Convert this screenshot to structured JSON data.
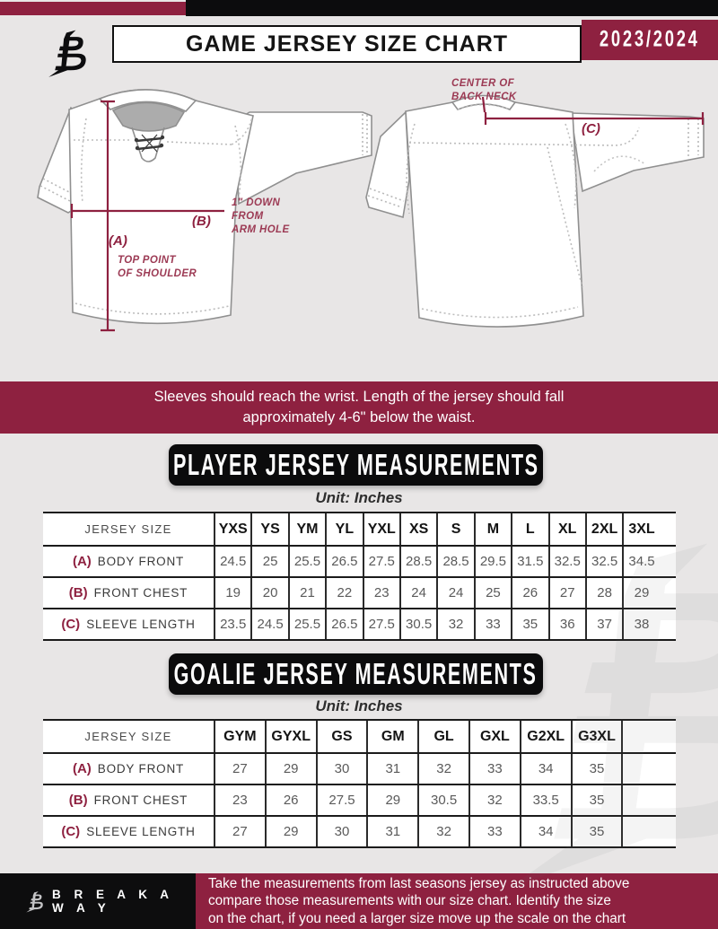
{
  "header": {
    "title": "GAME JERSEY SIZE CHART",
    "season": "2023/2024"
  },
  "diagram": {
    "front": {
      "label_a": "(A)",
      "label_b": "(B)",
      "note_a": [
        "TOP POINT",
        "OF SHOULDER"
      ],
      "note_b": [
        "1\" DOWN",
        "FROM",
        "ARM HOLE"
      ]
    },
    "back": {
      "label_c": "(C)",
      "note_c": [
        "CENTER OF",
        "BACK NECK"
      ]
    }
  },
  "note_banner": [
    "Sleeves should reach the wrist. Length of the jersey should fall",
    "approximately 4-6\" below the waist."
  ],
  "player_table": {
    "title": "PLAYER JERSEY MEASUREMENTS",
    "unit": "Unit: Inches",
    "size_label": "JERSEY SIZE",
    "ghost_border": false,
    "sizes": [
      "YXS",
      "YS",
      "YM",
      "YL",
      "YXL",
      "XS",
      "S",
      "M",
      "L",
      "XL",
      "2XL",
      "3XL"
    ],
    "rows": [
      {
        "key": "(A)",
        "label": "BODY FRONT",
        "values": [
          "24.5",
          "25",
          "25.5",
          "26.5",
          "27.5",
          "28.5",
          "28.5",
          "29.5",
          "31.5",
          "32.5",
          "32.5",
          "34.5"
        ]
      },
      {
        "key": "(B)",
        "label": "FRONT CHEST",
        "values": [
          "19",
          "20",
          "21",
          "22",
          "23",
          "24",
          "24",
          "25",
          "26",
          "27",
          "28",
          "29"
        ]
      },
      {
        "key": "(C)",
        "label": "SLEEVE LENGTH",
        "values": [
          "23.5",
          "24.5",
          "25.5",
          "26.5",
          "27.5",
          "30.5",
          "32",
          "33",
          "35",
          "36",
          "37",
          "38"
        ]
      }
    ]
  },
  "goalie_table": {
    "title": "GOALIE JERSEY MEASUREMENTS",
    "unit": "Unit: Inches",
    "size_label": "JERSEY SIZE",
    "ghost_border": true,
    "sizes": [
      "GYM",
      "GYXL",
      "GS",
      "GM",
      "GL",
      "GXL",
      "G2XL",
      "G3XL"
    ],
    "rows": [
      {
        "key": "(A)",
        "label": "BODY FRONT",
        "values": [
          "27",
          "29",
          "30",
          "31",
          "32",
          "33",
          "34",
          "35"
        ]
      },
      {
        "key": "(B)",
        "label": "FRONT CHEST",
        "values": [
          "23",
          "26",
          "27.5",
          "29",
          "30.5",
          "32",
          "33.5",
          "35"
        ]
      },
      {
        "key": "(C)",
        "label": "SLEEVE LENGTH",
        "values": [
          "27",
          "29",
          "30",
          "31",
          "32",
          "33",
          "34",
          "35"
        ]
      }
    ]
  },
  "footer": {
    "brand": "B R E A K A W A Y",
    "text": [
      "Take the measurements from last seasons jersey as instructed above",
      "compare those measurements  with our size chart. Identify the size",
      "on the chart, if you need a larger size move up the scale on the chart"
    ]
  },
  "colors": {
    "maroon": "#8E2140",
    "black": "#0C0C0D",
    "background": "#E8E6E6"
  }
}
